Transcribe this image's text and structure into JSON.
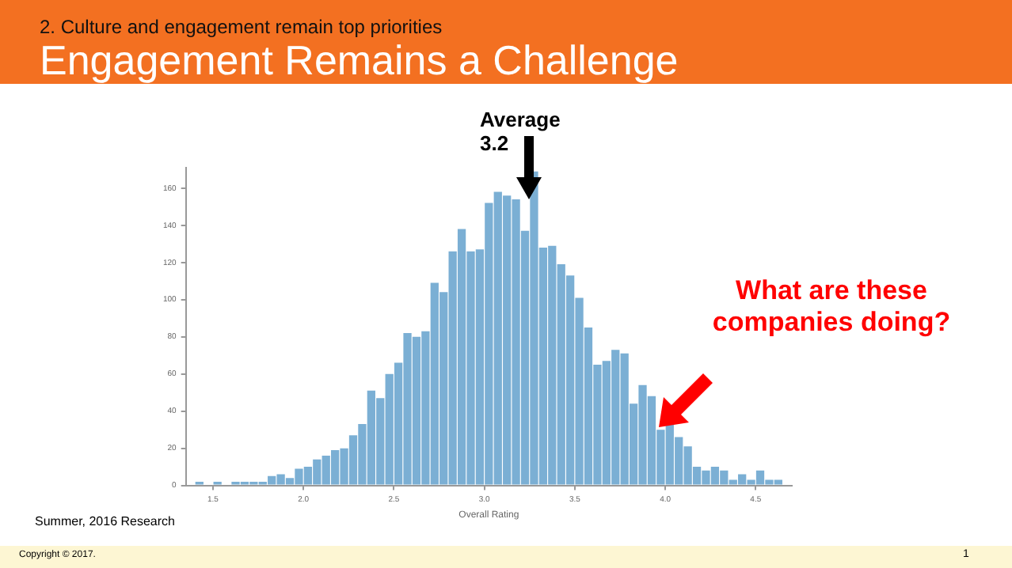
{
  "chart_data": {
    "type": "histogram",
    "subtitle": "2. Culture and engagement remain top priorities",
    "title": "Engagement Remains a Challenge",
    "xlabel": "Overall Rating",
    "bins": [
      1.4,
      1.45,
      1.5,
      1.55,
      1.6,
      1.65,
      1.7,
      1.75,
      1.8,
      1.85,
      1.9,
      1.95,
      2.0,
      2.05,
      2.1,
      2.15,
      2.2,
      2.25,
      2.3,
      2.35,
      2.4,
      2.45,
      2.5,
      2.55,
      2.6,
      2.65,
      2.7,
      2.75,
      2.8,
      2.85,
      2.9,
      2.95,
      3.0,
      3.05,
      3.1,
      3.15,
      3.2,
      3.25,
      3.3,
      3.35,
      3.4,
      3.45,
      3.5,
      3.55,
      3.6,
      3.65,
      3.7,
      3.75,
      3.8,
      3.85,
      3.9,
      3.95,
      4.0,
      4.05,
      4.1,
      4.15,
      4.2,
      4.25,
      4.3,
      4.35,
      4.4,
      4.45,
      4.5,
      4.55,
      4.6,
      4.65
    ],
    "values": [
      2,
      0,
      2,
      0,
      2,
      2,
      2,
      2,
      5,
      6,
      4,
      9,
      10,
      14,
      16,
      19,
      20,
      27,
      33,
      51,
      47,
      60,
      66,
      82,
      80,
      83,
      109,
      104,
      126,
      138,
      126,
      127,
      152,
      158,
      156,
      154,
      137,
      169,
      128,
      129,
      119,
      113,
      101,
      85,
      65,
      67,
      73,
      71,
      44,
      54,
      48,
      30,
      33,
      26,
      21,
      10,
      8,
      10,
      8,
      3,
      6,
      3,
      8,
      3,
      3
    ],
    "color": "#7bafd4",
    "xlim": [
      1.35,
      4.7
    ],
    "ylim": [
      0,
      171
    ],
    "xticks": [
      1.5,
      {
        "value": 2,
        "label": "2.0"
      },
      2.5,
      {
        "value": 3,
        "label": "3.0"
      },
      3.5,
      {
        "value": 4,
        "label": "4.0"
      },
      4.5
    ],
    "yticks": [
      0,
      20,
      40,
      60,
      80,
      100,
      120,
      140,
      160
    ],
    "grid": false,
    "legend": false,
    "annotations": [
      "Average 3.2",
      "What are these companies doing?",
      "Summer, 2016 Research",
      "Copyright © 2017.",
      "1"
    ]
  }
}
